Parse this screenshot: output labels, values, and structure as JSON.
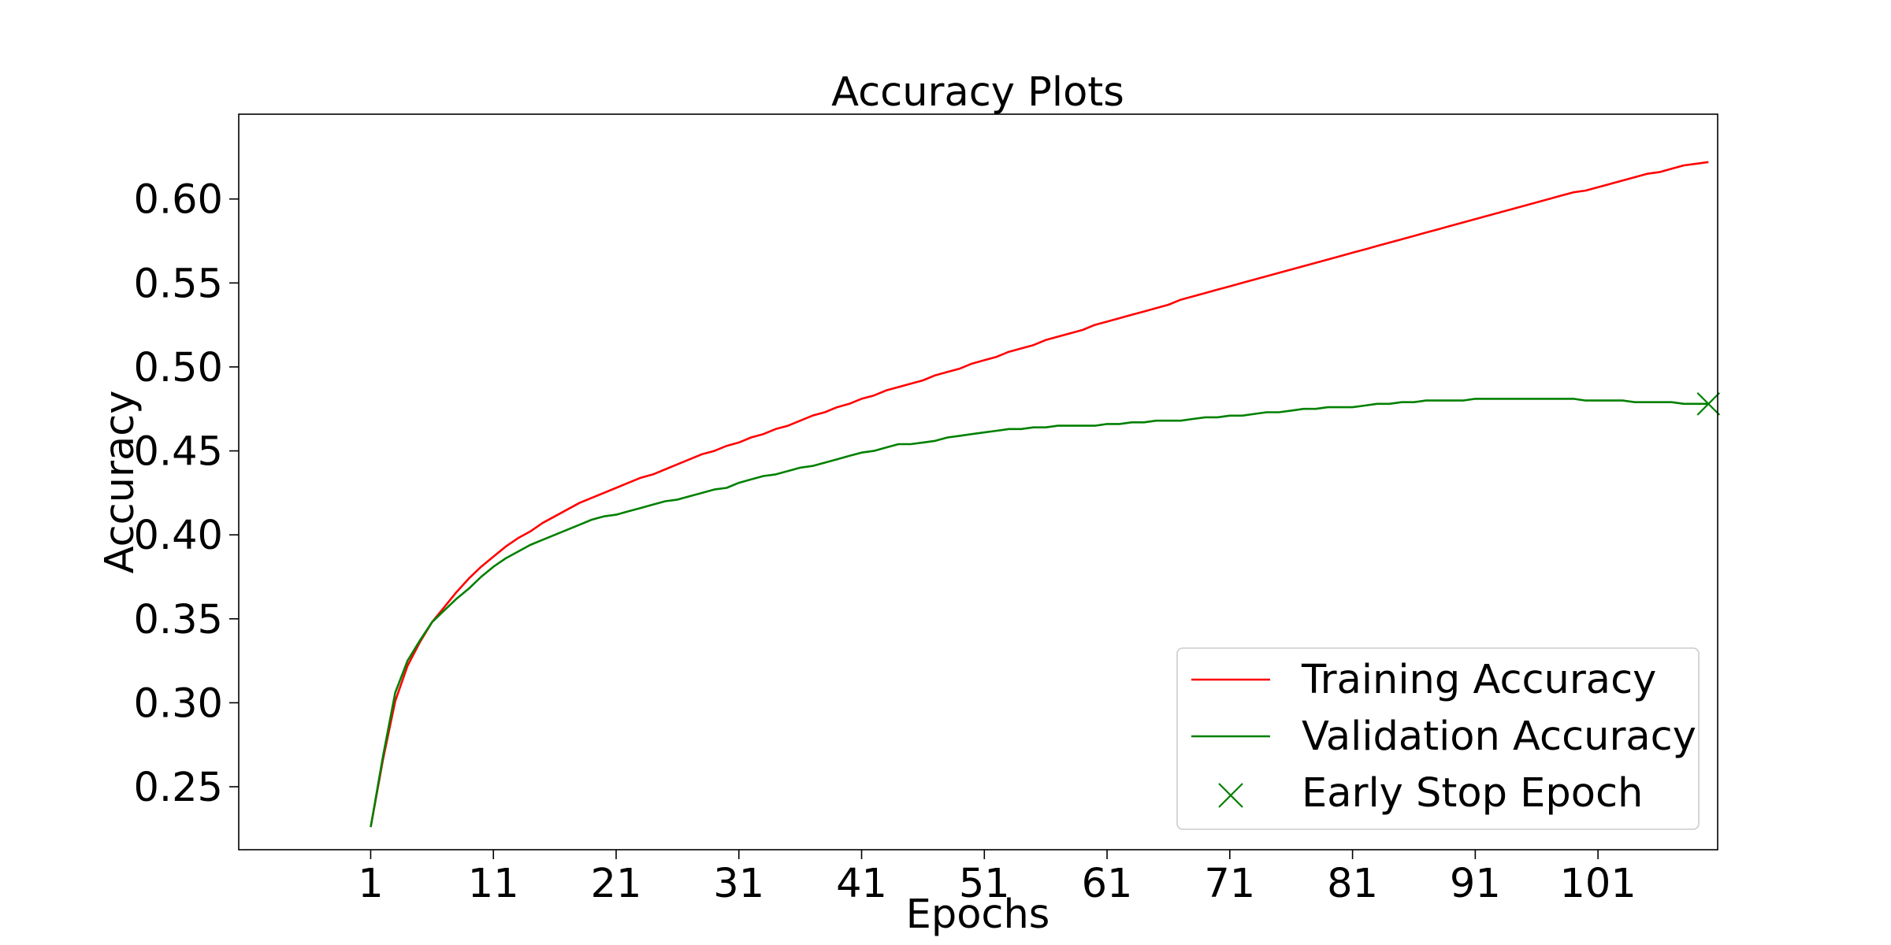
{
  "chart_data": {
    "type": "line",
    "title": "Accuracy Plots",
    "xlabel": "Epochs",
    "ylabel": "Accuracy",
    "xlim": [
      -9.75,
      110.75
    ],
    "ylim": [
      0.2125,
      0.6505
    ],
    "x_ticks": [
      1,
      11,
      21,
      31,
      41,
      51,
      61,
      71,
      81,
      91,
      101
    ],
    "y_ticks": [
      0.25,
      0.3,
      0.35,
      0.4,
      0.45,
      0.5,
      0.55,
      0.6
    ],
    "y_tick_labels": [
      "0.25",
      "0.30",
      "0.35",
      "0.40",
      "0.45",
      "0.50",
      "0.55",
      "0.60"
    ],
    "grid": false,
    "legend_position": "lower-right",
    "epochs": [
      1,
      2,
      3,
      4,
      5,
      6,
      7,
      8,
      9,
      10,
      11,
      12,
      13,
      14,
      15,
      16,
      17,
      18,
      19,
      20,
      21,
      22,
      23,
      24,
      25,
      26,
      27,
      28,
      29,
      30,
      31,
      32,
      33,
      34,
      35,
      36,
      37,
      38,
      39,
      40,
      41,
      42,
      43,
      44,
      45,
      46,
      47,
      48,
      49,
      50,
      51,
      52,
      53,
      54,
      55,
      56,
      57,
      58,
      59,
      60,
      61,
      62,
      63,
      64,
      65,
      66,
      67,
      68,
      69,
      70,
      71,
      72,
      73,
      74,
      75,
      76,
      77,
      78,
      79,
      80,
      81,
      82,
      83,
      84,
      85,
      86,
      87,
      88,
      89,
      90,
      91,
      92,
      93,
      94,
      95,
      96,
      97,
      98,
      99,
      100,
      101,
      102,
      103,
      104,
      105,
      106,
      107,
      108,
      109,
      110
    ],
    "series": [
      {
        "name": "Training Accuracy",
        "color": "#ff0000",
        "values": [
          0.226,
          0.266,
          0.301,
          0.322,
          0.336,
          0.348,
          0.357,
          0.366,
          0.374,
          0.381,
          0.387,
          0.393,
          0.398,
          0.402,
          0.407,
          0.411,
          0.415,
          0.419,
          0.422,
          0.425,
          0.428,
          0.431,
          0.434,
          0.436,
          0.439,
          0.442,
          0.445,
          0.448,
          0.45,
          0.453,
          0.455,
          0.458,
          0.46,
          0.463,
          0.465,
          0.468,
          0.471,
          0.473,
          0.476,
          0.478,
          0.481,
          0.483,
          0.486,
          0.488,
          0.49,
          0.492,
          0.495,
          0.497,
          0.499,
          0.502,
          0.504,
          0.506,
          0.509,
          0.511,
          0.513,
          0.516,
          0.518,
          0.52,
          0.522,
          0.525,
          0.527,
          0.529,
          0.531,
          0.533,
          0.535,
          0.537,
          0.54,
          0.542,
          0.544,
          0.546,
          0.548,
          0.55,
          0.552,
          0.554,
          0.556,
          0.558,
          0.56,
          0.562,
          0.564,
          0.566,
          0.568,
          0.57,
          0.572,
          0.574,
          0.576,
          0.578,
          0.58,
          0.582,
          0.584,
          0.586,
          0.588,
          0.59,
          0.592,
          0.594,
          0.596,
          0.598,
          0.6,
          0.602,
          0.604,
          0.605,
          0.607,
          0.609,
          0.611,
          0.613,
          0.615,
          0.616,
          0.618,
          0.62,
          0.621,
          0.622
        ]
      },
      {
        "name": "Validation Accuracy",
        "color": "#008000",
        "values": [
          0.226,
          0.268,
          0.306,
          0.325,
          0.337,
          0.348,
          0.355,
          0.362,
          0.368,
          0.375,
          0.381,
          0.386,
          0.39,
          0.394,
          0.397,
          0.4,
          0.403,
          0.406,
          0.409,
          0.411,
          0.412,
          0.414,
          0.416,
          0.418,
          0.42,
          0.421,
          0.423,
          0.425,
          0.427,
          0.428,
          0.431,
          0.433,
          0.435,
          0.436,
          0.438,
          0.44,
          0.441,
          0.443,
          0.445,
          0.447,
          0.449,
          0.45,
          0.452,
          0.454,
          0.454,
          0.455,
          0.456,
          0.458,
          0.459,
          0.46,
          0.461,
          0.462,
          0.463,
          0.463,
          0.464,
          0.464,
          0.465,
          0.465,
          0.465,
          0.465,
          0.466,
          0.466,
          0.467,
          0.467,
          0.468,
          0.468,
          0.468,
          0.469,
          0.47,
          0.47,
          0.471,
          0.471,
          0.472,
          0.473,
          0.473,
          0.474,
          0.475,
          0.475,
          0.476,
          0.476,
          0.476,
          0.477,
          0.478,
          0.478,
          0.479,
          0.479,
          0.48,
          0.48,
          0.48,
          0.48,
          0.481,
          0.481,
          0.481,
          0.481,
          0.481,
          0.481,
          0.481,
          0.481,
          0.481,
          0.48,
          0.48,
          0.48,
          0.48,
          0.479,
          0.479,
          0.479,
          0.479,
          0.478,
          0.478,
          0.478
        ]
      }
    ],
    "early_stop": {
      "name": "Early Stop Epoch",
      "epoch": 110,
      "value": 0.478,
      "color": "#008000",
      "marker": "x"
    }
  }
}
